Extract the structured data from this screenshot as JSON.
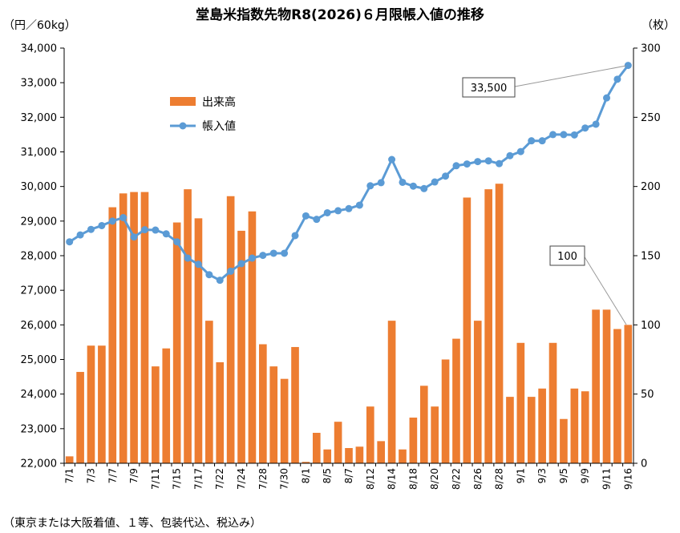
{
  "chart_data": {
    "type": "bar+line",
    "title": "堂島米指数先物R8(2026)６月限帳入値の推移",
    "y_left_label": "（円／60kg）",
    "y_right_label": "（枚）",
    "y_left_lim": [
      22000,
      34000
    ],
    "y_left_ticks": [
      "22,000",
      "23,000",
      "24,000",
      "25,000",
      "26,000",
      "27,000",
      "28,000",
      "29,000",
      "30,000",
      "31,000",
      "32,000",
      "33,000",
      "34,000"
    ],
    "y_right_lim": [
      0,
      300
    ],
    "y_right_ticks": [
      "0",
      "50",
      "100",
      "150",
      "200",
      "250",
      "300"
    ],
    "x_tick_labels": [
      "7/1",
      "7/3",
      "7/7",
      "7/9",
      "7/11",
      "7/15",
      "7/17",
      "7/22",
      "7/24",
      "7/28",
      "7/30",
      "8/1",
      "8/5",
      "8/7",
      "8/12",
      "8/14",
      "8/18",
      "8/20",
      "8/22",
      "8/26",
      "8/28",
      "9/1",
      "9/3",
      "9/5",
      "9/9",
      "9/11",
      "9/16"
    ],
    "series": [
      {
        "name": "出来高",
        "kind": "bar",
        "axis": "right",
        "color": "#ED7D31",
        "values": [
          5,
          66,
          85,
          85,
          185,
          195,
          196,
          196,
          70,
          83,
          174,
          198,
          177,
          103,
          73,
          193,
          168,
          182,
          86,
          70,
          61,
          84,
          1,
          22,
          10,
          30,
          11,
          12,
          41,
          16,
          103,
          10,
          33,
          56,
          41,
          75,
          90,
          192,
          103,
          198,
          202,
          48,
          87,
          48,
          54,
          87,
          32,
          54,
          52,
          111,
          111,
          97,
          100
        ]
      },
      {
        "name": "帳入値",
        "kind": "line",
        "axis": "left",
        "color": "#5B9BD5",
        "values": [
          28400,
          28600,
          28760,
          28870,
          29000,
          29100,
          28540,
          28750,
          28740,
          28630,
          28400,
          27930,
          27750,
          27450,
          27290,
          27550,
          27770,
          27930,
          28010,
          28070,
          28070,
          28580,
          29150,
          29050,
          29240,
          29300,
          29360,
          29460,
          30020,
          30110,
          30780,
          30120,
          30010,
          29940,
          30130,
          30300,
          30600,
          30650,
          30720,
          30740,
          30660,
          30890,
          31010,
          31320,
          31320,
          31500,
          31500,
          31490,
          31690,
          31800,
          32560,
          33100,
          33500
        ]
      }
    ],
    "legend": [
      "出来高",
      "帳入値"
    ],
    "annotations": [
      {
        "text": "33,500"
      },
      {
        "text": "100"
      }
    ],
    "note": "（東京または大阪着値、１等、包装代込、税込み）",
    "grid": false,
    "legend_position": "upper-left"
  }
}
